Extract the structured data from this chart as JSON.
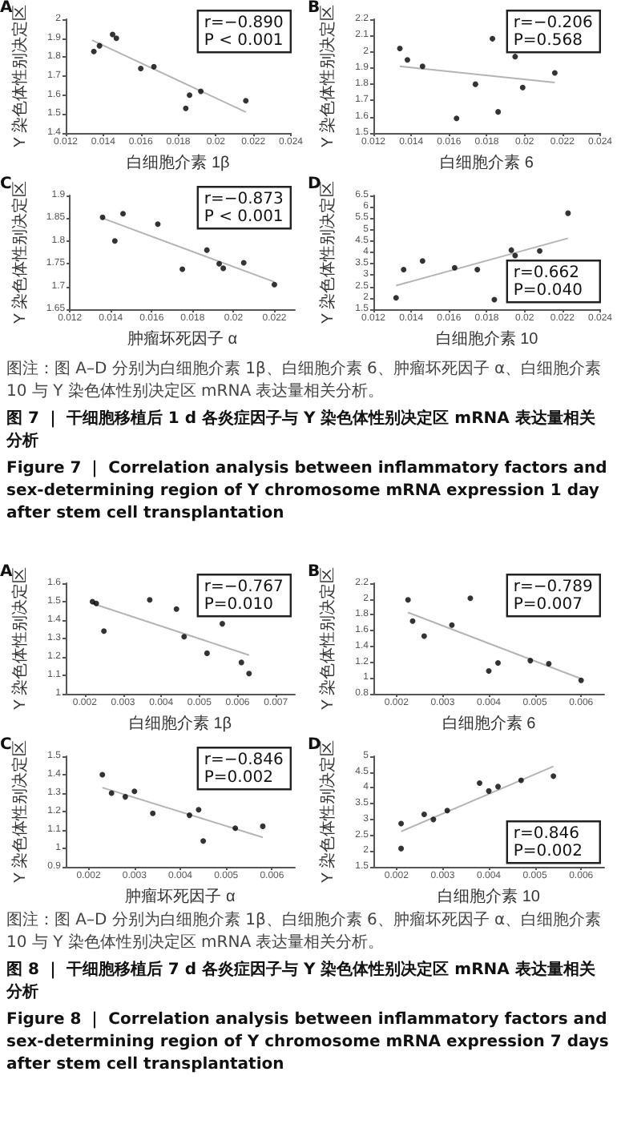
{
  "chart_data": [
    {
      "type": "scatter",
      "title": "A",
      "xlabel": "白细胞介素 1β",
      "ylabel": "Y 染色体性别决定区",
      "xlim": [
        0.012,
        0.024
      ],
      "xticks": [
        0.012,
        0.014,
        0.016,
        0.018,
        0.02,
        0.022,
        0.024
      ],
      "ylim": [
        1.4,
        2.0
      ],
      "yticks": [
        1.4,
        1.5,
        1.6,
        1.7,
        1.8,
        1.9,
        2.0
      ],
      "grid": false,
      "annotations": [
        "r=−0.890",
        "P < 0.001"
      ],
      "series": [
        {
          "type": "scatter",
          "marker": "circle",
          "color": "#000000",
          "x": [
            0.0135,
            0.0138,
            0.0145,
            0.0147,
            0.016,
            0.0167,
            0.0186,
            0.0184,
            0.0192,
            0.0216
          ],
          "values": [
            1.83,
            1.86,
            1.92,
            1.9,
            1.74,
            1.75,
            1.6,
            1.53,
            1.62,
            1.57
          ]
        },
        {
          "type": "line",
          "color": "#b4b4b4",
          "x": [
            0.0134,
            0.0216
          ],
          "values": [
            1.89,
            1.51
          ]
        }
      ]
    },
    {
      "type": "scatter",
      "title": "B",
      "xlabel": "白细胞介素 6",
      "ylabel": "Y 染色体性别决定区",
      "xlim": [
        0.012,
        0.024
      ],
      "xticks": [
        0.012,
        0.014,
        0.016,
        0.018,
        0.02,
        0.022,
        0.024
      ],
      "ylim": [
        1.5,
        2.2
      ],
      "yticks": [
        1.5,
        1.6,
        1.7,
        1.8,
        1.9,
        2.0,
        2.1,
        2.2
      ],
      "grid": false,
      "annotations": [
        "r=−0.206",
        "P=0.568"
      ],
      "series": [
        {
          "type": "scatter",
          "marker": "circle",
          "color": "#000000",
          "x": [
            0.0134,
            0.0138,
            0.0146,
            0.0164,
            0.0174,
            0.0183,
            0.0186,
            0.0195,
            0.0199,
            0.0216
          ],
          "values": [
            2.02,
            1.95,
            1.91,
            1.59,
            1.8,
            2.08,
            1.63,
            1.97,
            1.78,
            1.87
          ]
        },
        {
          "type": "line",
          "color": "#b4b4b4",
          "x": [
            0.0134,
            0.0216
          ],
          "values": [
            1.91,
            1.81
          ]
        }
      ]
    },
    {
      "type": "scatter",
      "title": "C",
      "xlabel": "肿瘤坏死因子 α",
      "ylabel": "Y 染色体性别决定区",
      "xlim": [
        0.012,
        0.023
      ],
      "xticks": [
        0.012,
        0.014,
        0.016,
        0.018,
        0.02,
        0.022
      ],
      "ylim": [
        1.65,
        1.9
      ],
      "yticks": [
        1.65,
        1.7,
        1.75,
        1.8,
        1.85,
        1.9
      ],
      "grid": false,
      "annotations": [
        "r=−0.873",
        "P < 0.001"
      ],
      "series": [
        {
          "type": "scatter",
          "marker": "circle",
          "color": "#000000",
          "x": [
            0.0136,
            0.0142,
            0.0146,
            0.0163,
            0.0175,
            0.0187,
            0.0193,
            0.0195,
            0.0205,
            0.022
          ],
          "values": [
            1.852,
            1.8,
            1.86,
            1.837,
            1.738,
            1.78,
            1.75,
            1.74,
            1.752,
            1.704
          ]
        },
        {
          "type": "line",
          "color": "#b4b4b4",
          "x": [
            0.0136,
            0.022
          ],
          "values": [
            1.85,
            1.71
          ]
        }
      ]
    },
    {
      "type": "scatter",
      "title": "D",
      "xlabel": "白细胞介素 10",
      "ylabel": "Y 染色体性别决定区",
      "xlim": [
        0.012,
        0.024
      ],
      "xticks": [
        0.012,
        0.014,
        0.016,
        0.018,
        0.02,
        0.022,
        0.024
      ],
      "ylim": [
        1.5,
        6.5
      ],
      "yticks": [
        1.5,
        2.0,
        2.5,
        3.0,
        3.5,
        4.0,
        4.5,
        5.0,
        5.5,
        6.0,
        6.5
      ],
      "grid": false,
      "annotations": [
        "r=0.662",
        "P=0.040"
      ],
      "series": [
        {
          "type": "scatter",
          "marker": "circle",
          "color": "#000000",
          "x": [
            0.0132,
            0.0136,
            0.0146,
            0.0163,
            0.0175,
            0.0184,
            0.0193,
            0.0195,
            0.0208,
            0.0223
          ],
          "values": [
            2.0,
            3.24,
            3.62,
            3.32,
            3.24,
            1.92,
            4.1,
            3.86,
            4.06,
            5.72
          ]
        },
        {
          "type": "line",
          "color": "#b4b4b4",
          "x": [
            0.0132,
            0.0223
          ],
          "values": [
            2.54,
            4.62
          ]
        }
      ]
    },
    {
      "type": "other",
      "annotations": [
        "图注：图 A–D 分别为白细胞介素 1β、白细胞介素 6、肿瘤坏死因子 α、白细胞介素 10 与 Y 染色体性别决定区 mRNA 表达量相关分析。",
        "图 7 ｜ 干细胞移植后 1 d 各炎症因子与 Y 染色体性别决定区 mRNA 表达量相关分析",
        "Figure 7 ｜ Correlation analysis between inflammatory factors and sex-determining region of Y chromosome mRNA expression 1 day after stem cell transplantation"
      ]
    },
    {
      "type": "scatter",
      "title": "A",
      "xlabel": "白细胞介素 1β",
      "ylabel": "Y 染色体性别决定区",
      "xlim": [
        0.0015,
        0.0075
      ],
      "xticks": [
        0.002,
        0.003,
        0.004,
        0.005,
        0.006,
        0.007
      ],
      "ylim": [
        1.0,
        1.6
      ],
      "yticks": [
        1.0,
        1.1,
        1.2,
        1.3,
        1.4,
        1.5,
        1.6
      ],
      "grid": false,
      "annotations": [
        "r=−0.767",
        "P=0.010"
      ],
      "series": [
        {
          "type": "scatter",
          "marker": "circle",
          "color": "#000000",
          "x": [
            0.0022,
            0.0023,
            0.0025,
            0.0037,
            0.0044,
            0.0046,
            0.0052,
            0.0056,
            0.0061,
            0.0063
          ],
          "values": [
            1.5,
            1.49,
            1.34,
            1.51,
            1.46,
            1.31,
            1.22,
            1.38,
            1.17,
            1.11
          ]
        },
        {
          "type": "line",
          "color": "#b4b4b4",
          "x": [
            0.0022,
            0.0063
          ],
          "values": [
            1.49,
            1.21
          ]
        }
      ]
    },
    {
      "type": "scatter",
      "title": "B",
      "xlabel": "白细胞介素 6",
      "ylabel": "Y 染色体性别决定区",
      "xlim": [
        0.0015,
        0.0065
      ],
      "xticks": [
        0.002,
        0.003,
        0.004,
        0.005,
        0.006
      ],
      "ylim": [
        0.8,
        2.2
      ],
      "yticks": [
        0.8,
        1.0,
        1.2,
        1.4,
        1.6,
        1.8,
        2.0,
        2.2
      ],
      "grid": false,
      "annotations": [
        "r=−0.789",
        "P=0.007"
      ],
      "series": [
        {
          "type": "scatter",
          "marker": "circle",
          "color": "#000000",
          "x": [
            0.00225,
            0.00235,
            0.0026,
            0.0032,
            0.0036,
            0.004,
            0.0042,
            0.0049,
            0.0053,
            0.006
          ],
          "values": [
            1.99,
            1.72,
            1.53,
            1.67,
            2.01,
            1.09,
            1.19,
            1.22,
            1.18,
            0.97
          ]
        },
        {
          "type": "line",
          "color": "#b4b4b4",
          "x": [
            0.00225,
            0.006
          ],
          "values": [
            1.83,
            0.99
          ]
        }
      ]
    },
    {
      "type": "scatter",
      "title": "C",
      "xlabel": "肿瘤坏死因子 α",
      "ylabel": "Y 染色体性别决定区",
      "xlim": [
        0.0015,
        0.0065
      ],
      "xticks": [
        0.002,
        0.003,
        0.004,
        0.005,
        0.006
      ],
      "ylim": [
        0.9,
        1.5
      ],
      "yticks": [
        0.9,
        1.0,
        1.1,
        1.2,
        1.3,
        1.4,
        1.5
      ],
      "grid": false,
      "annotations": [
        "r=−0.846",
        "P=0.002"
      ],
      "series": [
        {
          "type": "scatter",
          "marker": "circle",
          "color": "#000000",
          "x": [
            0.0023,
            0.0025,
            0.0028,
            0.003,
            0.0034,
            0.0042,
            0.0044,
            0.0045,
            0.0052,
            0.0058
          ],
          "values": [
            1.4,
            1.3,
            1.28,
            1.31,
            1.19,
            1.18,
            1.21,
            1.04,
            1.11,
            1.12
          ]
        },
        {
          "type": "line",
          "color": "#b4b4b4",
          "x": [
            0.0023,
            0.0058
          ],
          "values": [
            1.33,
            1.06
          ]
        }
      ]
    },
    {
      "type": "scatter",
      "title": "D",
      "xlabel": "白细胞介素 10",
      "ylabel": "Y 染色体性别决定区",
      "xlim": [
        0.0015,
        0.0065
      ],
      "xticks": [
        0.002,
        0.003,
        0.004,
        0.005,
        0.006
      ],
      "ylim": [
        1.5,
        5.0
      ],
      "yticks": [
        1.5,
        2.0,
        2.5,
        3.0,
        3.5,
        4.0,
        4.5,
        5.0
      ],
      "grid": false,
      "annotations": [
        "r=0.846",
        "P=0.002"
      ],
      "series": [
        {
          "type": "scatter",
          "marker": "circle",
          "color": "#000000",
          "x": [
            0.0021,
            0.0021,
            0.0026,
            0.0028,
            0.0031,
            0.0038,
            0.004,
            0.0042,
            0.0047,
            0.0054
          ],
          "values": [
            2.08,
            2.87,
            3.16,
            3.0,
            3.28,
            4.15,
            3.9,
            4.04,
            4.24,
            4.37
          ]
        },
        {
          "type": "line",
          "color": "#b4b4b4",
          "x": [
            0.0021,
            0.0054
          ],
          "values": [
            2.62,
            4.68
          ]
        }
      ]
    },
    {
      "type": "other",
      "annotations": [
        "图注：图 A–D 分别为白细胞介素 1β、白细胞介素 6、肿瘤坏死因子 α、白细胞介素 10 与 Y 染色体性别决定区 mRNA 表达量相关分析。",
        "图 8 ｜ 干细胞移植后 7 d 各炎症因子与 Y 染色体性别决定区 mRNA 表达量相关分析",
        "Figure 8 ｜ Correlation analysis between inflammatory factors and sex-determining region of Y chromosome mRNA expression 7 days after stem cell transplantation"
      ]
    }
  ]
}
